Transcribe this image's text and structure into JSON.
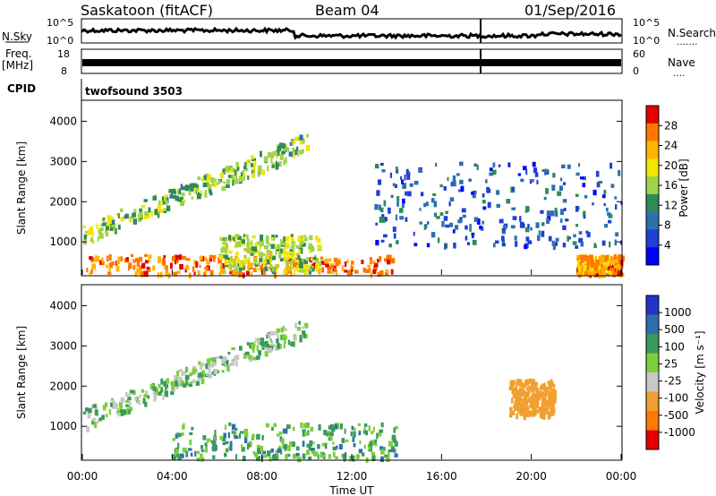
{
  "header": {
    "station": "Saskatoon (fitACF)",
    "beam": "Beam 04",
    "date": "01/Sep/2016"
  },
  "panels": {
    "nsky_label": "N.Sky",
    "nsky_ticks": [
      "10^5",
      "10^0"
    ],
    "nsearch_label": "N.Search",
    "nsearch_dots": "․․․․․․․",
    "nsearch_ticks": [
      "10^5",
      "10^0"
    ],
    "freq_label": "Freq.",
    "freq_unit": "[MHz]",
    "freq_ticks": [
      "18",
      "8"
    ],
    "nave_label": "Nave",
    "nave_dots": "․․․․",
    "nave_ticks": [
      "60",
      "0"
    ],
    "cpid_label": "CPID",
    "cpid_value": "twofsound 3503"
  },
  "chart_data": [
    {
      "type": "heatmap",
      "title": "",
      "quantity": "Power",
      "colorbar_label": "Power [dB]",
      "colorbar_ticks": [
        "28",
        "24",
        "20",
        "16",
        "12",
        "8",
        "4"
      ],
      "colorbar_colors": [
        "#e60000",
        "#ff7700",
        "#ffb400",
        "#f2e500",
        "#9fd44a",
        "#2e8b57",
        "#2f6fb0",
        "#1f3fd6",
        "#0000ff"
      ],
      "xlabel": "Time UT",
      "ylabel": "Slant Range [km]",
      "x_ticks": [
        "00:00",
        "04:00",
        "08:00",
        "12:00",
        "16:00",
        "20:00",
        "00:00"
      ],
      "y_ticks": [
        "1000",
        "2000",
        "3000",
        "4000"
      ],
      "xlim": [
        0,
        24
      ],
      "ylim": [
        180,
        4500
      ],
      "regions": [
        {
          "desc": "near-range strong echoes",
          "x": [
            0,
            14
          ],
          "y": [
            200,
            700
          ],
          "value": 26
        },
        {
          "desc": "rising arc",
          "x": [
            0,
            10
          ],
          "y": [
            1200,
            3500
          ],
          "value": 14
        },
        {
          "desc": "ground scatter band",
          "x": [
            6,
            10.5
          ],
          "y": [
            300,
            1200
          ],
          "value": 16
        },
        {
          "desc": "post-midnight band",
          "x": [
            13,
            24
          ],
          "y": [
            900,
            3000
          ],
          "value": 6
        },
        {
          "desc": "late near-range",
          "x": [
            22,
            24
          ],
          "y": [
            200,
            700
          ],
          "value": 24
        }
      ]
    },
    {
      "type": "heatmap",
      "title": "",
      "quantity": "Velocity",
      "colorbar_label": "Velocity [m s⁻¹]",
      "colorbar_ticks": [
        "1000",
        "500",
        "100",
        "25",
        "-25",
        "-100",
        "-500",
        "-1000"
      ],
      "colorbar_colors": [
        "#2233cc",
        "#2e6fb0",
        "#3a9a5c",
        "#7ccf3a",
        "#c8c8c8",
        "#f0a030",
        "#ff7a00",
        "#e60000"
      ],
      "xlabel": "Time UT",
      "ylabel": "Slant Range [km]",
      "x_ticks": [
        "00:00",
        "04:00",
        "08:00",
        "12:00",
        "16:00",
        "20:00",
        "00:00"
      ],
      "y_ticks": [
        "1000",
        "2000",
        "3000",
        "4000"
      ],
      "xlim": [
        0,
        24
      ],
      "ylim": [
        180,
        4500
      ],
      "regions": [
        {
          "desc": "ground scatter arc",
          "x": [
            0,
            10
          ],
          "y": [
            1200,
            3500
          ],
          "value": 0
        },
        {
          "desc": "near-range mixed",
          "x": [
            4,
            14
          ],
          "y": [
            200,
            1100
          ],
          "value": 50
        },
        {
          "desc": "evening negative",
          "x": [
            19,
            21
          ],
          "y": [
            1300,
            2200
          ],
          "value": -300
        }
      ]
    }
  ]
}
